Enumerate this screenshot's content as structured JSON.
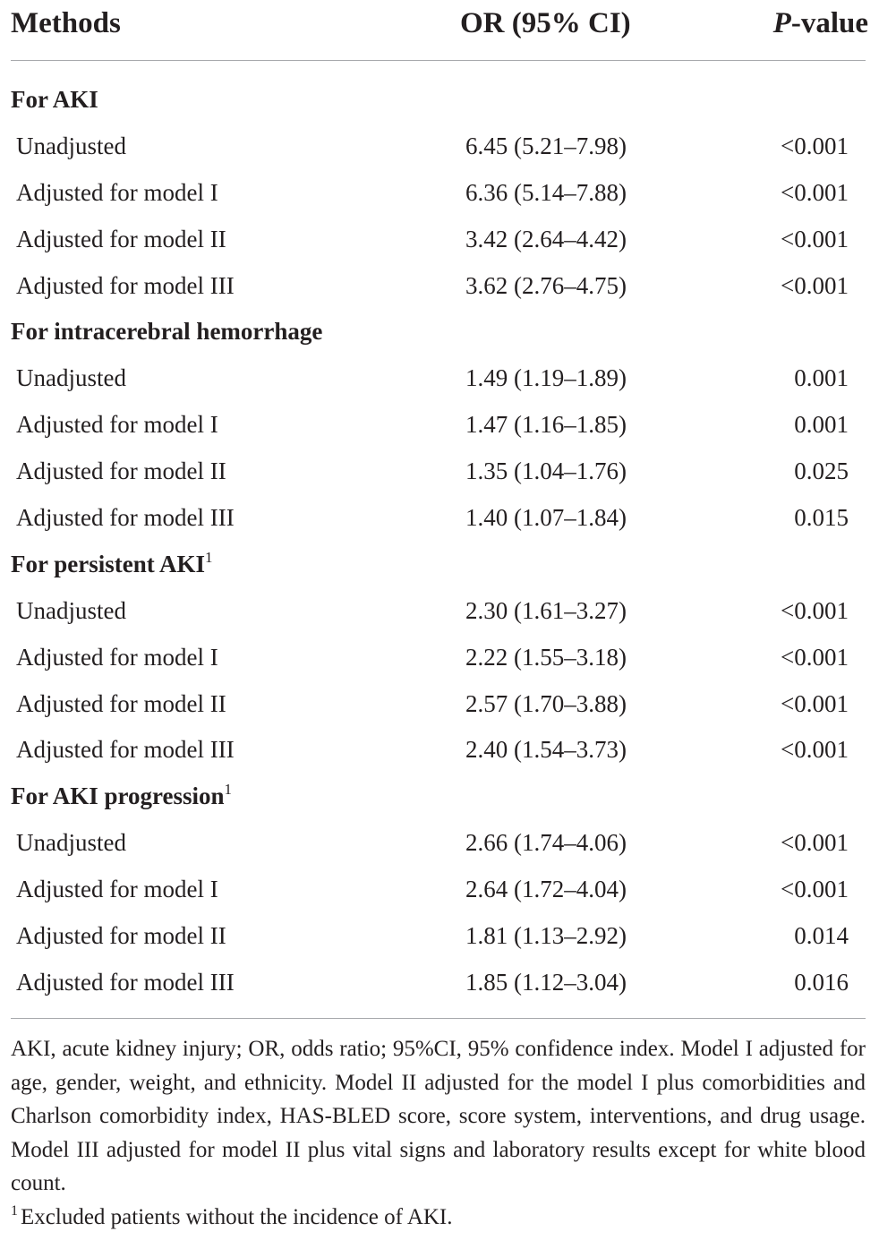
{
  "table": {
    "headers": {
      "methods": "Methods",
      "or_ci": "OR (95% CI)",
      "p_value_italic": "P",
      "p_value_rest": "-value"
    },
    "sections": [
      {
        "title": "For AKI",
        "sup": "",
        "rows": [
          {
            "method": "Unadjusted",
            "or_ci": "6.45 (5.21–7.98)",
            "p": "<0.001"
          },
          {
            "method": "Adjusted for model I",
            "or_ci": "6.36 (5.14–7.88)",
            "p": "<0.001"
          },
          {
            "method": "Adjusted for model II",
            "or_ci": "3.42 (2.64–4.42)",
            "p": "<0.001"
          },
          {
            "method": "Adjusted for model III",
            "or_ci": "3.62 (2.76–4.75)",
            "p": "<0.001"
          }
        ]
      },
      {
        "title": "For intracerebral hemorrhage",
        "sup": "",
        "rows": [
          {
            "method": "Unadjusted",
            "or_ci": "1.49 (1.19–1.89)",
            "p": "0.001"
          },
          {
            "method": "Adjusted for model I",
            "or_ci": "1.47 (1.16–1.85)",
            "p": "0.001"
          },
          {
            "method": "Adjusted for model II",
            "or_ci": "1.35 (1.04–1.76)",
            "p": "0.025"
          },
          {
            "method": "Adjusted for model III",
            "or_ci": "1.40 (1.07–1.84)",
            "p": "0.015"
          }
        ]
      },
      {
        "title": "For persistent AKI",
        "sup": "1",
        "rows": [
          {
            "method": "Unadjusted",
            "or_ci": "2.30 (1.61–3.27)",
            "p": "<0.001"
          },
          {
            "method": "Adjusted for model I",
            "or_ci": "2.22 (1.55–3.18)",
            "p": "<0.001"
          },
          {
            "method": "Adjusted for model II",
            "or_ci": "2.57 (1.70–3.88)",
            "p": "<0.001"
          },
          {
            "method": "Adjusted for model III",
            "or_ci": "2.40 (1.54–3.73)",
            "p": "<0.001"
          }
        ]
      },
      {
        "title": "For AKI progression",
        "sup": "1",
        "rows": [
          {
            "method": "Unadjusted",
            "or_ci": "2.66 (1.74–4.06)",
            "p": "<0.001"
          },
          {
            "method": "Adjusted for model I",
            "or_ci": "2.64 (1.72–4.04)",
            "p": "<0.001"
          },
          {
            "method": "Adjusted for model II",
            "or_ci": "1.81 (1.13–2.92)",
            "p": "0.014"
          },
          {
            "method": "Adjusted for model III",
            "or_ci": "1.85 (1.12–3.04)",
            "p": "0.016"
          }
        ]
      }
    ]
  },
  "footnotes": {
    "abbreviations": "AKI, acute kidney injury; OR, odds ratio; 95%CI, 95% confidence index. Model I adjusted for age, gender, weight, and ethnicity. Model II adjusted for the model I plus comorbidities and Charlson comorbidity index, HAS-BLED score, score system, interventions, and drug usage. Model III adjusted for model II plus vital signs and laboratory results except for white blood count.",
    "note_marker": "1",
    "note_text": "Excluded patients without the incidence of AKI."
  }
}
